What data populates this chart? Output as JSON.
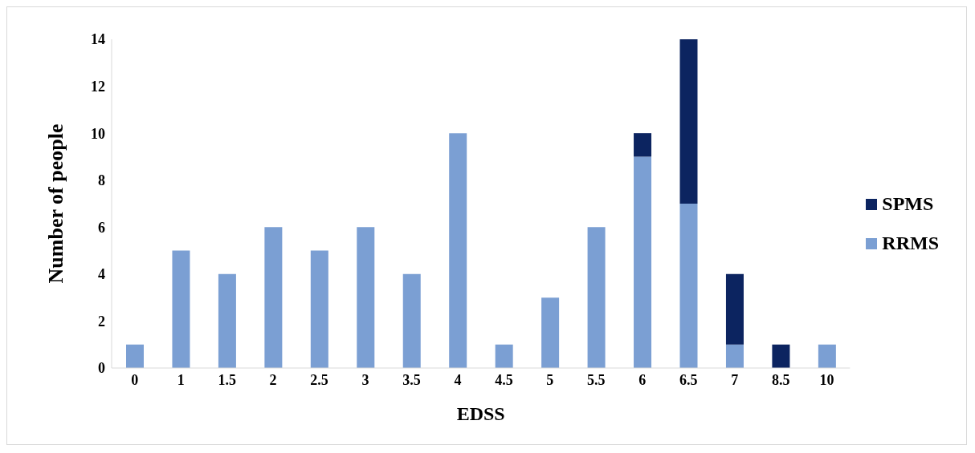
{
  "chart_data": {
    "type": "bar",
    "stacked": true,
    "xlabel": "EDSS",
    "ylabel": "Number of people",
    "categories": [
      "0",
      "1",
      "1.5",
      "2",
      "2.5",
      "3",
      "3.5",
      "4",
      "4.5",
      "5",
      "5.5",
      "6",
      "6.5",
      "7",
      "8.5",
      "10"
    ],
    "series": [
      {
        "name": "RRMS",
        "color": "#7b9fd3",
        "values": [
          1,
          5,
          4,
          6,
          5,
          6,
          4,
          10,
          1,
          3,
          6,
          9,
          7,
          1,
          0,
          1
        ]
      },
      {
        "name": "SPMS",
        "color": "#0c2460",
        "values": [
          0,
          0,
          0,
          0,
          0,
          0,
          0,
          0,
          0,
          0,
          0,
          1,
          7,
          3,
          1,
          0
        ]
      }
    ],
    "ylim": [
      0,
      14
    ],
    "yticks": [
      0,
      2,
      4,
      6,
      8,
      10,
      12,
      14
    ],
    "legend": "right"
  }
}
